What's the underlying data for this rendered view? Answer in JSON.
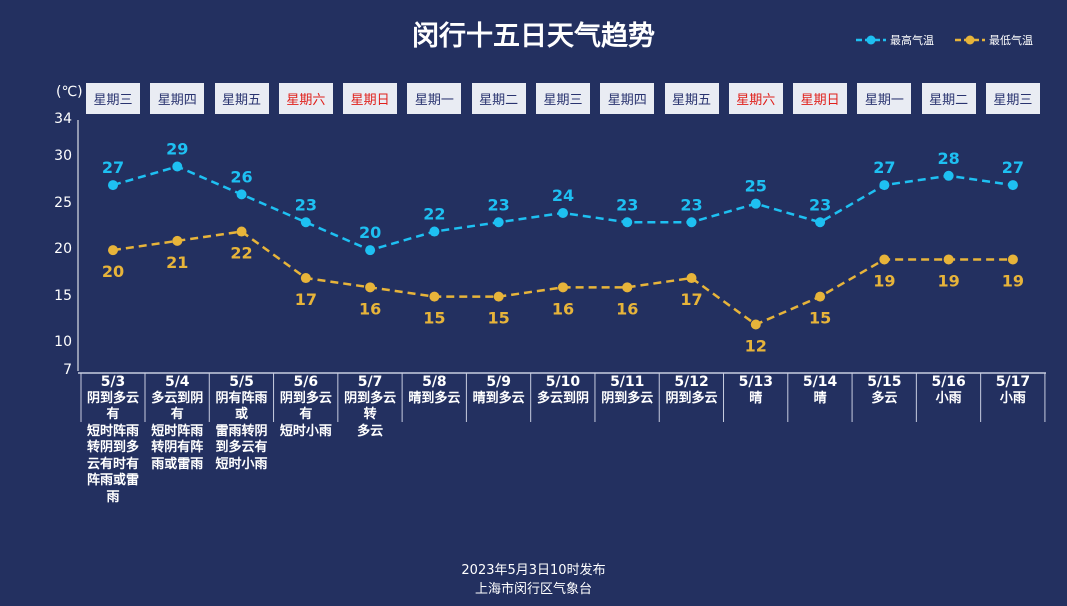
{
  "title": "闵行十五日天气趋势",
  "unit": "(℃)",
  "colors": {
    "background": "#233060",
    "high": "#1ec0f2",
    "low": "#e7b43a",
    "weekend": "#e0201b"
  },
  "footer": {
    "published": "2023年5月3日10时发布",
    "source": "上海市闵行区气象台"
  },
  "chart_data": {
    "type": "line",
    "title": "闵行十五日天气趋势",
    "ylabel": "(℃)",
    "ylim": [
      7,
      34
    ],
    "yticks": [
      7,
      10,
      15,
      20,
      25,
      30,
      34
    ],
    "legend": "top-right",
    "categories": [
      "5/3",
      "5/4",
      "5/5",
      "5/6",
      "5/7",
      "5/8",
      "5/9",
      "5/10",
      "5/11",
      "5/12",
      "5/13",
      "5/14",
      "5/15",
      "5/16",
      "5/17"
    ],
    "weekdays": [
      "星期三",
      "星期四",
      "星期五",
      "星期六",
      "星期日",
      "星期一",
      "星期二",
      "星期三",
      "星期四",
      "星期五",
      "星期六",
      "星期日",
      "星期一",
      "星期二",
      "星期三"
    ],
    "weekend": [
      false,
      false,
      false,
      true,
      true,
      false,
      false,
      false,
      false,
      false,
      true,
      true,
      false,
      false,
      false
    ],
    "weather": [
      "阴到多云有短时阵雨转阴到多云有时有阵雨或雷雨",
      "多云到阴有短时阵雨转阴有阵雨或雷雨",
      "阴有阵雨或雷雨转阴到多云有短时小雨",
      "阴到多云有短时小雨",
      "阴到多云转多云",
      "晴到多云",
      "晴到多云",
      "多云到阴",
      "阴到多云",
      "阴到多云",
      "晴",
      "晴",
      "多云",
      "小雨",
      "小雨"
    ],
    "series": [
      {
        "name": "最高气温",
        "values": [
          27,
          29,
          26,
          23,
          20,
          22,
          23,
          24,
          23,
          23,
          25,
          23,
          27,
          28,
          27
        ]
      },
      {
        "name": "最低气温",
        "values": [
          20,
          21,
          22,
          17,
          16,
          15,
          15,
          16,
          16,
          17,
          12,
          15,
          19,
          19,
          19
        ]
      }
    ]
  }
}
